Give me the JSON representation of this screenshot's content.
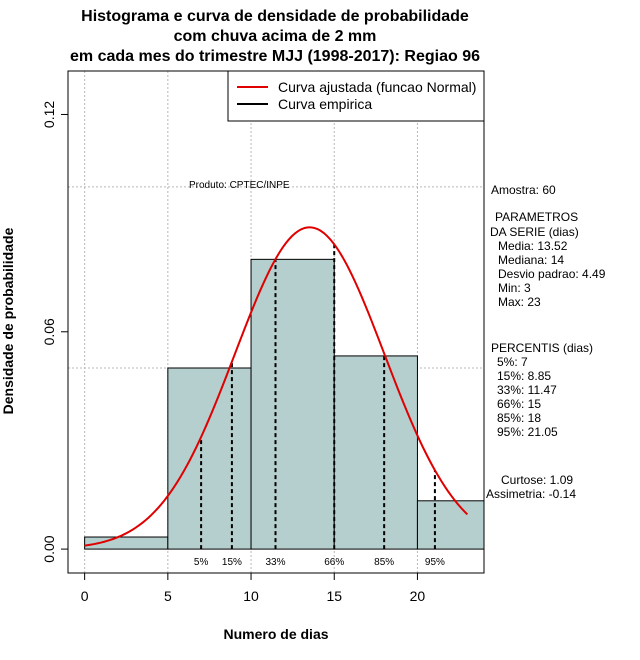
{
  "chart_data": {
    "type": "bar",
    "title_lines": [
      "Histograma e curva de densidade de probabilidade",
      "com chuva acima de 2 mm",
      "em cada mes do trimestre MJJ (1998-2017): Regiao 96"
    ],
    "xlabel": "Numero de dias",
    "ylabel": "Densidade de probabilidade",
    "xlim": [
      -1,
      24
    ],
    "ylim": [
      -0.0066,
      0.132
    ],
    "x_ticks": [
      0,
      5,
      10,
      15,
      20
    ],
    "x_tick_labels": [
      "0",
      "5",
      "10",
      "15",
      "20"
    ],
    "y_ticks": [
      0.0,
      0.06,
      0.12
    ],
    "y_tick_labels": [
      "0.00",
      "0.06",
      "0.12"
    ],
    "grid_x": [
      0,
      5,
      10,
      15,
      20
    ],
    "grid_y": [
      0.05,
      0.1
    ],
    "bins": [
      {
        "from": 0,
        "to": 5,
        "density": 0.003333
      },
      {
        "from": 5,
        "to": 10,
        "density": 0.05
      },
      {
        "from": 10,
        "to": 15,
        "density": 0.08
      },
      {
        "from": 15,
        "to": 20,
        "density": 0.053333
      },
      {
        "from": 20,
        "to": 24,
        "density": 0.013333
      }
    ],
    "bar_fill": "#b5cfce",
    "normal_curve": {
      "mean": 13.52,
      "sd": 4.49,
      "x_from": 0,
      "x_to": 23,
      "color": "#e00000"
    },
    "percentile_lines": [
      {
        "label": "5%",
        "x": 7
      },
      {
        "label": "15%",
        "x": 8.85
      },
      {
        "label": "33%",
        "x": 11.47
      },
      {
        "label": "66%",
        "x": 15
      },
      {
        "label": "85%",
        "x": 18
      },
      {
        "label": "95%",
        "x": 21.05
      }
    ],
    "legend": {
      "placement": "top-right",
      "entries": [
        {
          "label": "Curva ajustada (funcao Normal)",
          "color": "#e00000"
        },
        {
          "label": "Curva empirica",
          "color": "#000000"
        }
      ]
    },
    "credit": "Produto: CPTEC/INPE"
  },
  "side_panel": {
    "amostra": "Amostra: 60",
    "params_title_1": "PARAMETROS",
    "params_title_2": "DA SERIE (dias)",
    "params": [
      "Media: 13.52",
      "Mediana: 14",
      "Desvio padrao: 4.49",
      "Min: 3",
      "Max: 23"
    ],
    "percentis_title": "PERCENTIS (dias)",
    "percentis": [
      "5%: 7",
      "15%: 8.85",
      "33%: 11.47",
      "66%: 15",
      "85%: 18",
      "95%: 21.05"
    ],
    "curtose": "Curtose: 1.09",
    "assimetria": "Assimetria: -0.14"
  }
}
